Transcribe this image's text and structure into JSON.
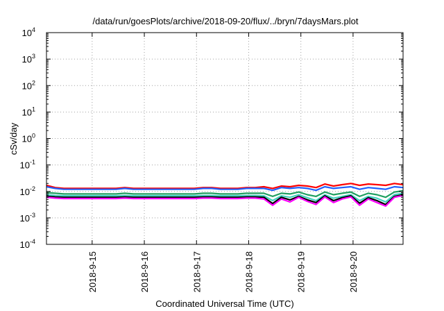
{
  "chart_data": {
    "type": "line",
    "title": "/data/run/goesPlots/archive/2018-09-20/flux/../bryn/7daysMars.plot",
    "xlabel": "Coordinated Universal Time (UTC)",
    "ylabel": "cSv/day",
    "yscale": "log",
    "ylim": [
      0.0001,
      10000
    ],
    "xlim": [
      "2018-09-14 03:00",
      "2018-09-20 23:00"
    ],
    "grid": true,
    "y_ticks": [
      {
        "base": "10",
        "exp": "-4"
      },
      {
        "base": "10",
        "exp": "-3"
      },
      {
        "base": "10",
        "exp": "-2"
      },
      {
        "base": "10",
        "exp": "-1"
      },
      {
        "base": "10",
        "exp": "0"
      },
      {
        "base": "10",
        "exp": "1"
      },
      {
        "base": "10",
        "exp": "2"
      },
      {
        "base": "10",
        "exp": "3"
      },
      {
        "base": "10",
        "exp": "4"
      }
    ],
    "x_ticks": [
      "2018-9-15",
      "2018-9-16",
      "2018-9-17",
      "2018-9-18",
      "2018-9-19",
      "2018-9-20"
    ],
    "x": [
      "2018-09-14 03:00",
      "2018-09-14 07:00",
      "2018-09-14 11:00",
      "2018-09-14 15:00",
      "2018-09-14 19:00",
      "2018-09-14 23:00",
      "2018-09-15 03:00",
      "2018-09-15 07:00",
      "2018-09-15 11:00",
      "2018-09-15 15:00",
      "2018-09-15 19:00",
      "2018-09-15 23:00",
      "2018-09-16 03:00",
      "2018-09-16 07:00",
      "2018-09-16 11:00",
      "2018-09-16 15:00",
      "2018-09-16 19:00",
      "2018-09-16 23:00",
      "2018-09-17 03:00",
      "2018-09-17 07:00",
      "2018-09-17 11:00",
      "2018-09-17 15:00",
      "2018-09-17 19:00",
      "2018-09-17 23:00",
      "2018-09-18 03:00",
      "2018-09-18 07:00",
      "2018-09-18 11:00",
      "2018-09-18 15:00",
      "2018-09-18 19:00",
      "2018-09-18 23:00",
      "2018-09-19 03:00",
      "2018-09-19 07:00",
      "2018-09-19 11:00",
      "2018-09-19 15:00",
      "2018-09-19 19:00",
      "2018-09-19 23:00",
      "2018-09-20 03:00",
      "2018-09-20 07:00",
      "2018-09-20 11:00",
      "2018-09-20 15:00",
      "2018-09-20 19:00",
      "2018-09-20 23:00"
    ],
    "series": [
      {
        "color": "#ff0000",
        "values": [
          0.017,
          0.014,
          0.013,
          0.013,
          0.013,
          0.013,
          0.013,
          0.013,
          0.013,
          0.014,
          0.013,
          0.013,
          0.013,
          0.013,
          0.013,
          0.013,
          0.013,
          0.013,
          0.014,
          0.014,
          0.013,
          0.013,
          0.013,
          0.014,
          0.014,
          0.015,
          0.013,
          0.016,
          0.015,
          0.017,
          0.016,
          0.014,
          0.019,
          0.016,
          0.018,
          0.02,
          0.017,
          0.019,
          0.018,
          0.017,
          0.02,
          0.018
        ]
      },
      {
        "color": "#2060ff",
        "values": [
          0.015,
          0.013,
          0.012,
          0.012,
          0.012,
          0.012,
          0.012,
          0.012,
          0.012,
          0.013,
          0.012,
          0.012,
          0.012,
          0.012,
          0.012,
          0.012,
          0.012,
          0.012,
          0.013,
          0.013,
          0.012,
          0.012,
          0.012,
          0.013,
          0.013,
          0.013,
          0.011,
          0.014,
          0.013,
          0.014,
          0.013,
          0.011,
          0.015,
          0.013,
          0.014,
          0.015,
          0.012,
          0.014,
          0.013,
          0.012,
          0.015,
          0.014
        ]
      },
      {
        "color": "#20a060",
        "values": [
          0.009,
          0.0085,
          0.008,
          0.008,
          0.008,
          0.008,
          0.008,
          0.008,
          0.008,
          0.0085,
          0.008,
          0.008,
          0.008,
          0.008,
          0.008,
          0.008,
          0.008,
          0.008,
          0.0085,
          0.0085,
          0.008,
          0.008,
          0.008,
          0.0085,
          0.0085,
          0.0085,
          0.0065,
          0.0085,
          0.008,
          0.0095,
          0.0075,
          0.0065,
          0.0095,
          0.0075,
          0.0085,
          0.0095,
          0.0065,
          0.0085,
          0.0075,
          0.006,
          0.0095,
          0.0105
        ]
      },
      {
        "color": "#40d0c0",
        "values": [
          0.0075,
          0.007,
          0.0068,
          0.0068,
          0.0068,
          0.0068,
          0.0068,
          0.0068,
          0.0068,
          0.007,
          0.0068,
          0.0068,
          0.0068,
          0.0068,
          0.0068,
          0.0068,
          0.0068,
          0.0068,
          0.007,
          0.007,
          0.0068,
          0.0068,
          0.0068,
          0.007,
          0.007,
          0.0068,
          0.0045,
          0.0068,
          0.006,
          0.0075,
          0.0058,
          0.0045,
          0.0075,
          0.0055,
          0.0065,
          0.0075,
          0.0045,
          0.0065,
          0.0055,
          0.004,
          0.0075,
          0.0085
        ]
      },
      {
        "color": "#000000",
        "values": [
          0.0065,
          0.0062,
          0.006,
          0.006,
          0.006,
          0.006,
          0.006,
          0.006,
          0.006,
          0.0062,
          0.006,
          0.006,
          0.006,
          0.006,
          0.006,
          0.006,
          0.006,
          0.006,
          0.0062,
          0.0062,
          0.006,
          0.006,
          0.006,
          0.0062,
          0.0062,
          0.006,
          0.0035,
          0.006,
          0.0048,
          0.0065,
          0.0048,
          0.0038,
          0.0068,
          0.0045,
          0.0058,
          0.0068,
          0.0036,
          0.0058,
          0.0045,
          0.0032,
          0.0065,
          0.0075
        ]
      },
      {
        "color": "#ff00ff",
        "values": [
          0.006,
          0.0056,
          0.0054,
          0.0054,
          0.0054,
          0.0054,
          0.0054,
          0.0054,
          0.0054,
          0.0056,
          0.0054,
          0.0054,
          0.0054,
          0.0054,
          0.0054,
          0.0054,
          0.0054,
          0.0054,
          0.0056,
          0.0056,
          0.0054,
          0.0054,
          0.0054,
          0.0056,
          0.0056,
          0.0052,
          0.003,
          0.0052,
          0.004,
          0.006,
          0.0042,
          0.0032,
          0.0062,
          0.0038,
          0.0052,
          0.0062,
          0.003,
          0.0052,
          0.0038,
          0.0028,
          0.006,
          0.007
        ]
      }
    ]
  }
}
